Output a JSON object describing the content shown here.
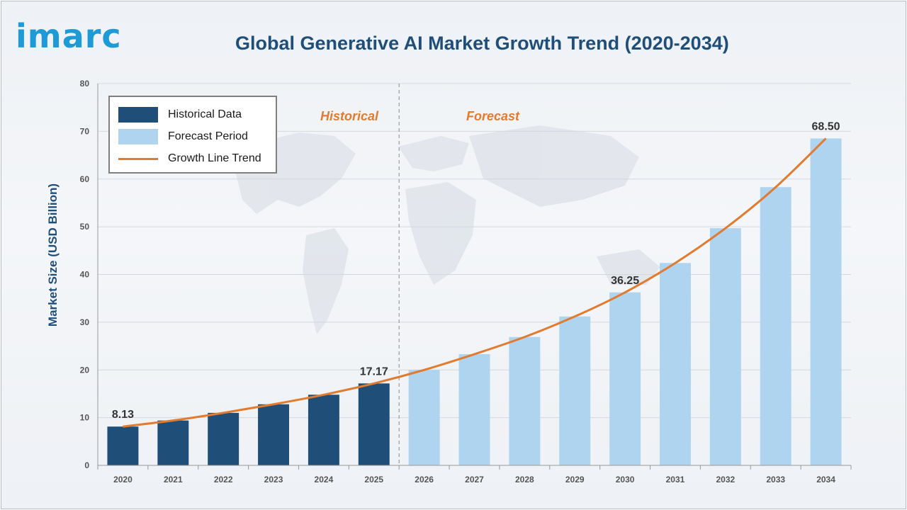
{
  "brand": {
    "logo_text": "imarc"
  },
  "colors": {
    "historical": "#1f4e79",
    "forecast": "#aed4ef",
    "trend": "#e07b30",
    "title": "#1f4e79",
    "logo": "#1e9ad6"
  },
  "chart_data": {
    "type": "bar",
    "title": "Global Generative AI Market Growth Trend (2020-2034)",
    "xlabel": "",
    "ylabel": "Market Size (USD Billion)",
    "ylim": [
      0,
      80
    ],
    "yticks": [
      0,
      10,
      20,
      30,
      40,
      50,
      60,
      70,
      80
    ],
    "grid": true,
    "legend_position": "top-left",
    "categories": [
      "2020",
      "2021",
      "2022",
      "2023",
      "2024",
      "2025",
      "2026",
      "2027",
      "2028",
      "2029",
      "2030",
      "2031",
      "2032",
      "2033",
      "2034"
    ],
    "series": [
      {
        "name": "Historical Data",
        "kind": "bar",
        "values": [
          8.13,
          9.4,
          11.0,
          12.8,
          14.8,
          17.17,
          null,
          null,
          null,
          null,
          null,
          null,
          null,
          null,
          null
        ]
      },
      {
        "name": "Forecast Period",
        "kind": "bar",
        "values": [
          null,
          null,
          null,
          null,
          null,
          null,
          20.0,
          23.3,
          26.9,
          31.2,
          36.25,
          42.4,
          49.7,
          58.3,
          68.5
        ]
      },
      {
        "name": "Growth Line Trend",
        "kind": "line",
        "values": [
          8.13,
          9.4,
          11.0,
          12.8,
          14.8,
          17.17,
          20.0,
          23.3,
          26.9,
          31.2,
          36.25,
          42.4,
          49.7,
          58.3,
          68.5
        ]
      }
    ],
    "data_labels": [
      {
        "category": "2020",
        "text": "8.13"
      },
      {
        "category": "2025",
        "text": "17.17"
      },
      {
        "category": "2030",
        "text": "36.25"
      },
      {
        "category": "2034",
        "text": "68.50"
      }
    ],
    "annotations": {
      "historical": "Historical",
      "forecast": "Forecast"
    },
    "divider_between": [
      "2025",
      "2026"
    ]
  }
}
